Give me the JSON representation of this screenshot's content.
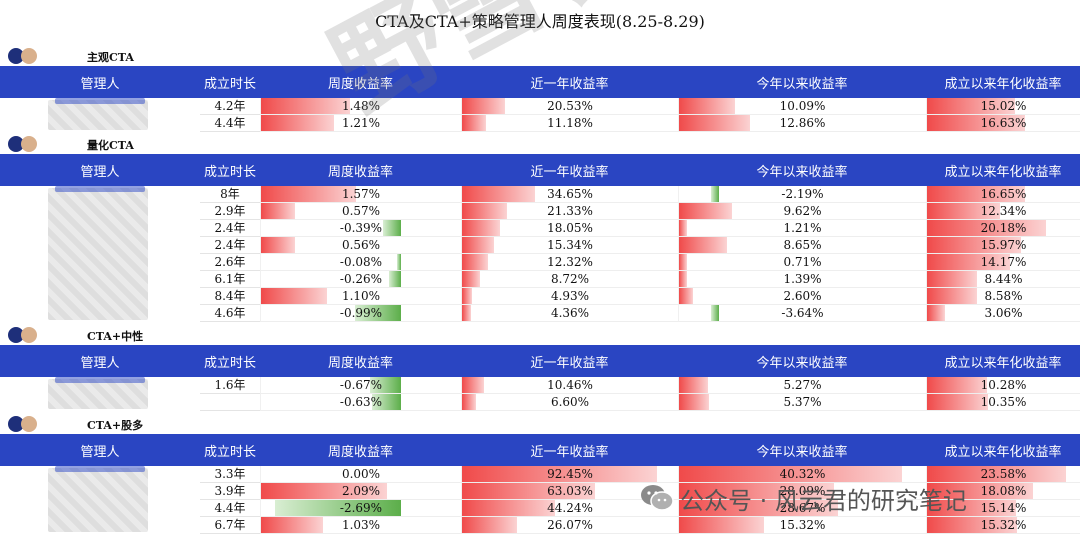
{
  "title": "CTA及CTA+策略管理人周度表现(8.25-8.29)",
  "headers": [
    "管理人",
    "成立时长",
    "周度收益率",
    "近一年收益率",
    "今年以来收益率",
    "成立以来年化收益率"
  ],
  "watermark": "野雪长坡",
  "footer": {
    "text": "公众号 · 风云君的研究笔记",
    "icon": "wechat-icon"
  },
  "colors": {
    "header_bg": "#2a45c2",
    "positive": "#f04a4a",
    "negative": "#5cae4a"
  },
  "sections": [
    {
      "name": "主观CTA",
      "rows": [
        {
          "age": "4.2年",
          "wk": "1.48%",
          "yr": "20.53%",
          "ytd": "10.09%",
          "ann": "15.02%"
        },
        {
          "age": "4.4年",
          "wk": "1.21%",
          "yr": "11.18%",
          "ytd": "12.86%",
          "ann": "16.63%"
        }
      ]
    },
    {
      "name": "量化CTA",
      "rows": [
        {
          "age": "8年",
          "wk": "1.57%",
          "yr": "34.65%",
          "ytd": "-2.19%",
          "ann": "16.65%"
        },
        {
          "age": "2.9年",
          "wk": "0.57%",
          "yr": "21.33%",
          "ytd": "9.62%",
          "ann": "12.34%"
        },
        {
          "age": "2.4年",
          "wk": "-0.39%",
          "yr": "18.05%",
          "ytd": "1.21%",
          "ann": "20.18%"
        },
        {
          "age": "2.4年",
          "wk": "0.56%",
          "yr": "15.34%",
          "ytd": "8.65%",
          "ann": "15.97%"
        },
        {
          "age": "2.6年",
          "wk": "-0.08%",
          "yr": "12.32%",
          "ytd": "0.71%",
          "ann": "14.17%"
        },
        {
          "age": "6.1年",
          "wk": "-0.26%",
          "yr": "8.72%",
          "ytd": "1.39%",
          "ann": "8.44%"
        },
        {
          "age": "8.4年",
          "wk": "1.10%",
          "yr": "4.93%",
          "ytd": "2.60%",
          "ann": "8.58%"
        },
        {
          "age": "4.6年",
          "wk": "-0.99%",
          "yr": "4.36%",
          "ytd": "-3.64%",
          "ann": "3.06%"
        }
      ]
    },
    {
      "name": "CTA+中性",
      "rows": [
        {
          "age": "1.6年",
          "wk": "-0.67%",
          "yr": "10.46%",
          "ytd": "5.27%",
          "ann": "10.28%"
        },
        {
          "age": "",
          "wk": "-0.63%",
          "yr": "6.60%",
          "ytd": "5.37%",
          "ann": "10.35%"
        }
      ]
    },
    {
      "name": "CTA+股多",
      "rows": [
        {
          "age": "3.3年",
          "wk": "0.00%",
          "yr": "92.45%",
          "ytd": "40.32%",
          "ann": "23.58%"
        },
        {
          "age": "3.9年",
          "wk": "2.09%",
          "yr": "63.03%",
          "ytd": "28.09%",
          "ann": "18.08%"
        },
        {
          "age": "4.4年",
          "wk": "-2.69%",
          "yr": "44.24%",
          "ytd": "28.67%",
          "ann": "15.14%"
        },
        {
          "age": "6.7年",
          "wk": "1.03%",
          "yr": "26.07%",
          "ytd": "15.32%",
          "ann": "15.32%"
        }
      ]
    }
  ]
}
